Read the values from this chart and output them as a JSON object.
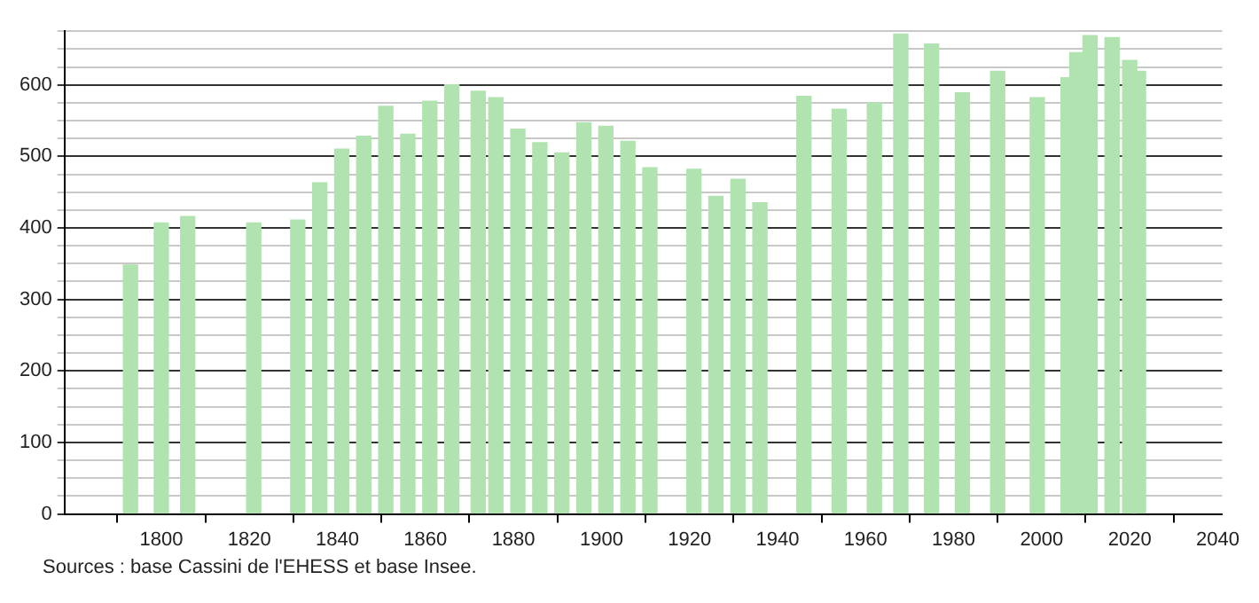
{
  "chart_data": {
    "type": "bar",
    "x": [
      1793,
      1800,
      1806,
      1821,
      1831,
      1836,
      1841,
      1846,
      1851,
      1856,
      1861,
      1866,
      1872,
      1876,
      1881,
      1886,
      1891,
      1896,
      1901,
      1906,
      1911,
      1921,
      1926,
      1931,
      1936,
      1946,
      1954,
      1962,
      1968,
      1975,
      1982,
      1990,
      1999,
      2006,
      2008,
      2011,
      2016,
      2020,
      2022
    ],
    "values": [
      348,
      407,
      416,
      407,
      411,
      463,
      510,
      528,
      570,
      531,
      577,
      600,
      591,
      582,
      538,
      519,
      505,
      547,
      542,
      521,
      484,
      482,
      444,
      468,
      435,
      584,
      566,
      575,
      671,
      657,
      589,
      619,
      582,
      610,
      645,
      669,
      666,
      634,
      619
    ],
    "color": "#b0e3b0",
    "xlim": [
      1778,
      2041
    ],
    "xticks": [
      1800,
      1820,
      1840,
      1860,
      1880,
      1900,
      1920,
      1940,
      1960,
      1980,
      2000,
      2020,
      2040
    ],
    "ylim": [
      0,
      675
    ],
    "yticks": [
      0,
      {
        "value": 25,
        "label": null
      },
      {
        "value": 50,
        "label": null
      },
      {
        "value": 75,
        "label": null
      },
      100,
      {
        "value": 125,
        "label": null
      },
      {
        "value": 150,
        "label": null
      },
      {
        "value": 175,
        "label": null
      },
      200,
      {
        "value": 225,
        "label": null
      },
      {
        "value": 250,
        "label": null
      },
      {
        "value": 275,
        "label": null
      },
      300,
      {
        "value": 325,
        "label": null
      },
      {
        "value": 350,
        "label": null
      },
      {
        "value": 375,
        "label": null
      },
      400,
      {
        "value": 425,
        "label": null
      },
      {
        "value": 450,
        "label": null
      },
      {
        "value": 475,
        "label": null
      },
      500,
      {
        "value": 525,
        "label": null
      },
      {
        "value": 550,
        "label": null
      },
      {
        "value": 575,
        "label": null
      },
      600,
      {
        "value": 625,
        "label": null
      },
      {
        "value": 650,
        "label": null
      },
      {
        "value": 675,
        "label": null
      }
    ],
    "grid": "y",
    "annotations": [
      "Sources : base Cassini de l'EHESS et base Insee."
    ]
  }
}
